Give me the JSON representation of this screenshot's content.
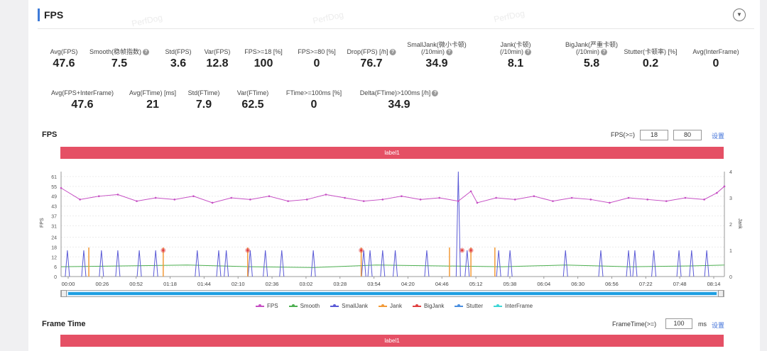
{
  "header": {
    "title": "FPS"
  },
  "watermark": "PerfDog",
  "stats_row1": [
    {
      "label": "Avg(FPS)",
      "value": "47.6",
      "help": false
    },
    {
      "label": "Smooth(稳帧指数)",
      "value": "7.5",
      "help": true
    },
    {
      "label": "Std(FPS)",
      "value": "3.6",
      "help": false
    },
    {
      "label": "Var(FPS)",
      "value": "12.8",
      "help": false
    },
    {
      "label": "FPS>=18 [%]",
      "value": "100",
      "help": false
    },
    {
      "label": "FPS>=80 [%]",
      "value": "0",
      "help": false
    },
    {
      "label": "Drop(FPS) [/h]",
      "value": "76.7",
      "help": true
    },
    {
      "label": "SmallJank(微小卡顿)",
      "label2": "(/10min)",
      "value": "34.9",
      "help": true
    },
    {
      "label": "Jank(卡顿)",
      "label2": "(/10min)",
      "value": "8.1",
      "help": true
    },
    {
      "label": "BigJank(严重卡顿)",
      "label2": "(/10min)",
      "value": "5.8",
      "help": true
    },
    {
      "label": "Stutter(卡顿率) [%]",
      "value": "0.2",
      "help": false
    },
    {
      "label": "Avg(InterFrame)",
      "value": "0",
      "help": false
    }
  ],
  "stats_row2": [
    {
      "label": "Avg(FPS+InterFrame)",
      "value": "47.6",
      "help": false
    },
    {
      "label": "Avg(FTime) [ms]",
      "value": "21",
      "help": false
    },
    {
      "label": "Std(FTime)",
      "value": "7.9",
      "help": false
    },
    {
      "label": "Var(FTime)",
      "value": "62.5",
      "help": false
    },
    {
      "label": "FTime>=100ms [%]",
      "value": "0",
      "help": false
    },
    {
      "label": "Delta(FTime)>100ms [/h]",
      "value": "34.9",
      "help": true
    }
  ],
  "fps_section": {
    "title": "FPS",
    "threshold_label": "FPS(>=)",
    "threshold_low": "18",
    "threshold_high": "80",
    "apply_label": "设置",
    "band_label": "label1"
  },
  "frametime_section": {
    "title": "Frame Time",
    "threshold_label": "FrameTime(>=)",
    "threshold_value": "100",
    "unit": "ms",
    "apply_label": "设置",
    "band_label": "label1"
  },
  "legend": [
    {
      "name": "FPS",
      "color": "#c64fc4"
    },
    {
      "name": "Smooth",
      "color": "#4caf50"
    },
    {
      "name": "SmallJank",
      "color": "#5a5ad6"
    },
    {
      "name": "Jank",
      "color": "#f29a38"
    },
    {
      "name": "BigJank",
      "color": "#e04040"
    },
    {
      "name": "Stutter",
      "color": "#4a8fe0"
    },
    {
      "name": "InterFrame",
      "color": "#3ed6d6"
    }
  ],
  "chart_data": {
    "type": "line",
    "ylabel": "FPS",
    "y2label": "Jank",
    "yticks": [
      0,
      6,
      12,
      18,
      24,
      31,
      37,
      43,
      49,
      55,
      61
    ],
    "y2ticks": [
      0,
      1,
      2,
      3,
      4
    ],
    "ylim": [
      0,
      64
    ],
    "y2lim": [
      0,
      4
    ],
    "xticks": [
      "00:00",
      "00:26",
      "00:52",
      "01:18",
      "01:44",
      "02:10",
      "02:36",
      "03:02",
      "03:28",
      "03:54",
      "04:20",
      "04:46",
      "05:12",
      "05:38",
      "06:04",
      "06:30",
      "06:56",
      "07:22",
      "07:48",
      "08:14"
    ],
    "x_range_seconds": [
      0,
      526
    ],
    "grid": true,
    "series": [
      {
        "name": "FPS",
        "x": [
          0,
          15,
          30,
          45,
          60,
          75,
          90,
          105,
          120,
          135,
          150,
          165,
          180,
          195,
          210,
          225,
          240,
          255,
          270,
          285,
          300,
          315,
          325,
          330,
          345,
          360,
          375,
          390,
          405,
          420,
          435,
          450,
          465,
          480,
          495,
          510,
          520,
          526
        ],
        "values": [
          54,
          47,
          49,
          50,
          46,
          48,
          47,
          49,
          45,
          48,
          47,
          49,
          46,
          47,
          50,
          48,
          46,
          47,
          49,
          47,
          48,
          46,
          52,
          45,
          48,
          47,
          49,
          46,
          48,
          47,
          45,
          48,
          47,
          46,
          48,
          47,
          51,
          55
        ]
      },
      {
        "name": "Smooth",
        "x": [
          0,
          50,
          100,
          150,
          200,
          250,
          300,
          350,
          400,
          450,
          500,
          526
        ],
        "values": [
          6,
          6.5,
          7,
          6,
          5.5,
          7,
          6.5,
          6,
          7,
          6,
          6.5,
          7
        ]
      },
      {
        "name": "SmallJank",
        "x": [
          5,
          18,
          32,
          45,
          62,
          75,
          108,
          125,
          131,
          150,
          162,
          175,
          200,
          240,
          245,
          255,
          265,
          290,
          315,
          322,
          347,
          356,
          400,
          428,
          450,
          455,
          470,
          490,
          500,
          512
        ],
        "values": [
          1,
          1,
          1,
          1,
          1,
          1,
          1,
          1,
          1,
          1,
          1,
          1,
          1,
          1,
          1,
          1,
          1,
          1,
          4,
          1,
          1,
          1,
          1,
          1,
          1,
          1,
          1,
          1,
          1,
          1
        ]
      },
      {
        "name": "Jank",
        "x": [
          22,
          81,
          148,
          238,
          308,
          325,
          344
        ],
        "values": [
          1,
          1,
          1,
          1,
          1,
          1,
          1
        ]
      },
      {
        "name": "BigJank",
        "x": [
          81,
          148,
          238,
          318,
          325
        ],
        "values": [
          1,
          1,
          1,
          1,
          1
        ]
      }
    ]
  }
}
